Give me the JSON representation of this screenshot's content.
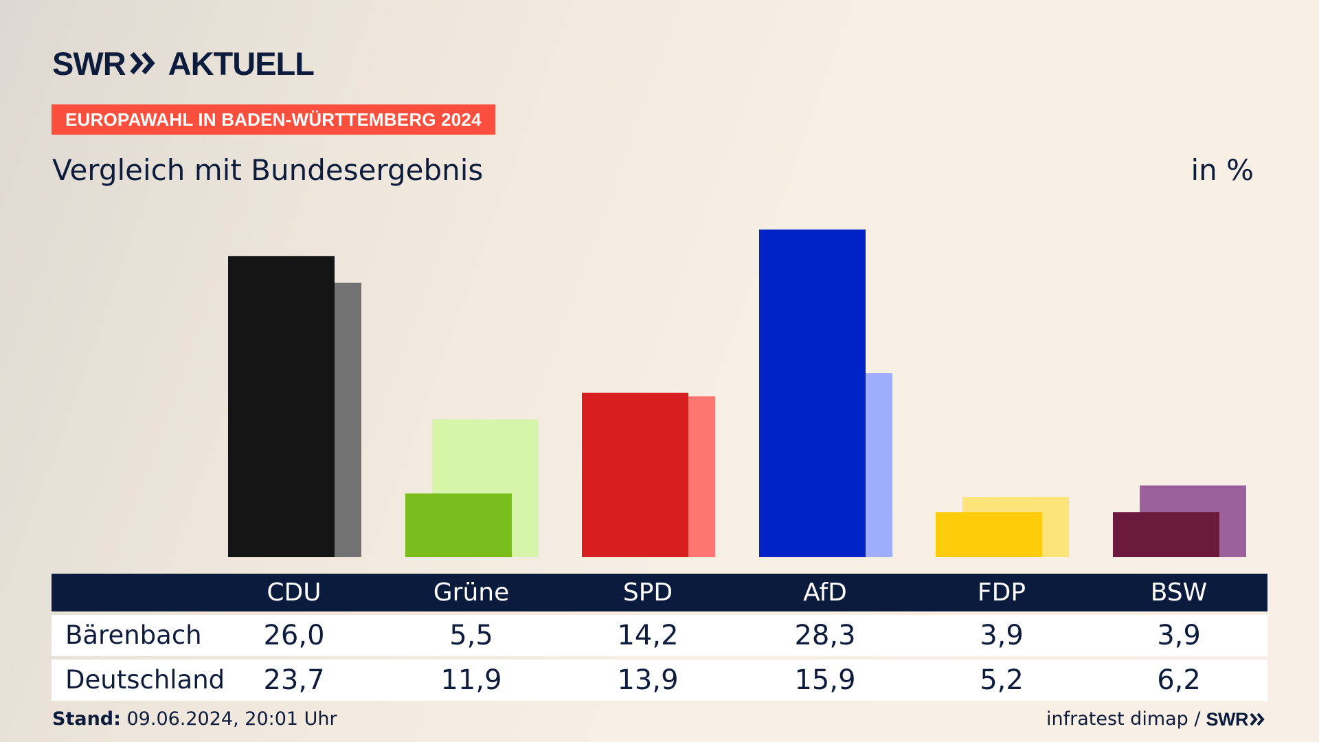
{
  "header": {
    "logo_brand": "SWR",
    "logo_sub": "AKTUELL",
    "tag": "EUROPAWAHL IN BADEN-WÜRTTEMBERG 2024",
    "subtitle": "Vergleich mit Bundesergebnis",
    "unit": "in %"
  },
  "chart_data": {
    "type": "bar",
    "categories": [
      "CDU",
      "Grüne",
      "SPD",
      "AfD",
      "FDP",
      "BSW"
    ],
    "series": [
      {
        "name": "Bärenbach",
        "values": [
          26.0,
          5.5,
          14.2,
          28.3,
          3.9,
          3.9
        ]
      },
      {
        "name": "Deutschland",
        "values": [
          23.7,
          11.9,
          13.9,
          15.9,
          5.2,
          6.2
        ]
      }
    ],
    "value_labels": {
      "Bärenbach": [
        "26,0",
        "5,5",
        "14,2",
        "28,3",
        "3,9",
        "3,9"
      ],
      "Deutschland": [
        "23,7",
        "11,9",
        "13,9",
        "15,9",
        "5,2",
        "6,2"
      ]
    },
    "colors_primary": [
      "#141414",
      "#79bd1c",
      "#d81f1f",
      "#0023c8",
      "#ffcc0c",
      "#6b1a3e"
    ],
    "colors_secondary": [
      "#727272",
      "#d6f5a8",
      "#ff7570",
      "#9fadfe",
      "#fde478",
      "#9c609c"
    ],
    "ylim": [
      0,
      30
    ],
    "grid": false,
    "legend": "table-below"
  },
  "footer": {
    "stand_label": "Stand:",
    "stand_value": " 09.06.2024, 20:01 Uhr",
    "source": "infratest dimap /",
    "source_logo": "SWR"
  }
}
